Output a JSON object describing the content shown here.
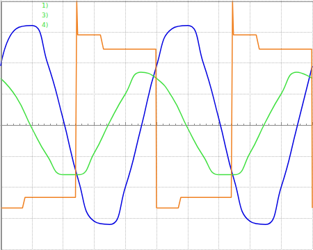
{
  "chart_data": {
    "type": "line",
    "annotations": [
      "1)",
      "3)",
      "4)"
    ],
    "xlim": [
      0,
      10
    ],
    "xticks": [
      0,
      1,
      2,
      3,
      4,
      5,
      6,
      7,
      8,
      9,
      10
    ],
    "ylim": [
      -4,
      4
    ],
    "yticks": [
      -4,
      -3,
      -2,
      -1,
      0,
      1,
      2,
      3,
      4
    ],
    "grid": true,
    "tick_labels": false,
    "series": [
      {
        "name": "1)",
        "color": "#0000e0",
        "x": [
          0,
          0.5,
          1,
          1.5,
          2,
          2.5,
          3,
          3.5,
          4,
          4.5,
          5,
          5.5,
          6,
          6.5,
          7,
          7.5,
          8,
          8.5,
          9,
          9.5,
          10
        ],
        "values": [
          1.9,
          3.1,
          3.2,
          2.0,
          0.2,
          -1.8,
          -3.1,
          -3.2,
          -2.0,
          -0.1,
          1.9,
          3.1,
          3.2,
          2.0,
          0.2,
          -1.8,
          -3.1,
          -3.2,
          -2.0,
          -0.1,
          1.9
        ]
      },
      {
        "name": "3)",
        "color": "#40e040",
        "x": [
          0,
          0.5,
          1,
          1.5,
          2,
          2.5,
          3,
          3.5,
          4,
          4.5,
          5,
          5.5,
          6,
          6.5,
          7,
          7.5,
          8,
          8.5,
          9,
          9.5,
          10
        ],
        "values": [
          1.5,
          0.9,
          -0.1,
          -1.0,
          -1.6,
          -1.6,
          -0.9,
          0.1,
          1.0,
          1.7,
          1.5,
          0.9,
          -0.1,
          -1.0,
          -1.6,
          -1.6,
          -0.9,
          0.1,
          1.0,
          1.7,
          1.5
        ]
      },
      {
        "name": "4)",
        "color": "#f08020",
        "x": [
          0,
          0.7,
          0.78,
          2.4,
          2.44,
          2.47,
          3.2,
          3.3,
          4.98,
          5.0,
          5.7,
          5.78,
          7.4,
          7.44,
          7.47,
          8.2,
          8.3,
          9.98,
          10
        ],
        "values": [
          -2.67,
          -2.67,
          -2.33,
          -2.33,
          4.0,
          2.9,
          2.9,
          2.44,
          2.44,
          -2.67,
          -2.67,
          -2.33,
          -2.33,
          4.0,
          2.9,
          2.9,
          2.44,
          2.44,
          -2.67
        ]
      }
    ]
  }
}
